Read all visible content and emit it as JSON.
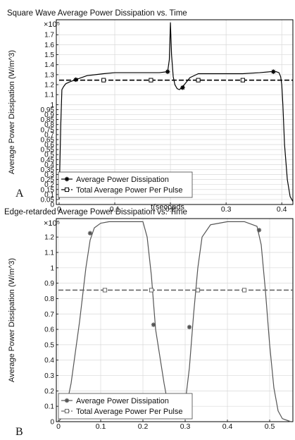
{
  "chart_data": [
    {
      "type": "line",
      "panel_label": "A",
      "title": "Square Wave Average Power Dissipation vs. Time",
      "xlabel": "t(seconds",
      "ylabel": "Average Power Dissipation (W/m^3)",
      "y_multiplier_label": "×10⁵",
      "xlim": [
        -0.005,
        0.42
      ],
      "ylim": [
        0,
        1.85
      ],
      "xticks": [
        0,
        0.1,
        0.2,
        0.3,
        0.4
      ],
      "xtick_labels": [
        "0",
        "0.1",
        "0.2",
        "0.3",
        "0.4"
      ],
      "yticks": [
        0,
        0.05,
        0.1,
        0.15,
        0.2,
        0.25,
        0.3,
        0.35,
        0.4,
        0.45,
        0.5,
        0.55,
        0.6,
        0.65,
        0.7,
        0.75,
        0.8,
        0.85,
        0.9,
        0.95,
        1,
        1.1,
        1.2,
        1.3,
        1.4,
        1.5,
        1.6,
        1.7
      ],
      "ytick_labels": [
        "0",
        "0.05",
        "0.1",
        "0.15",
        "0.2",
        "0.25",
        "0.3",
        "0.35",
        "0.4",
        "0.45",
        "0.5",
        "0.55",
        "0.6",
        "0.65",
        "0.7",
        "0.75",
        "0.8",
        "0.85",
        "0.9",
        "0.95",
        "1",
        "1.1",
        "1.2",
        "1.3",
        "1.4",
        "1.5",
        "1.6",
        "1.7"
      ],
      "grid": true,
      "legend_position": "bottom-left",
      "series": [
        {
          "name": "Average Power Dissipation",
          "style": "solid",
          "color": "#000000",
          "marker": "star",
          "x": [
            0.0,
            0.003,
            0.005,
            0.008,
            0.012,
            0.02,
            0.03,
            0.05,
            0.08,
            0.1,
            0.12,
            0.15,
            0.18,
            0.195,
            0.198,
            0.2,
            0.202,
            0.205,
            0.208,
            0.212,
            0.216,
            0.22,
            0.225,
            0.235,
            0.25,
            0.28,
            0.3,
            0.33,
            0.36,
            0.38,
            0.39,
            0.395,
            0.398,
            0.4,
            0.402,
            0.405,
            0.41,
            0.415,
            0.42
          ],
          "y": [
            0.05,
            0.8,
            1.15,
            1.18,
            1.21,
            1.23,
            1.25,
            1.29,
            1.31,
            1.32,
            1.32,
            1.32,
            1.32,
            1.33,
            1.45,
            1.82,
            1.5,
            1.28,
            1.2,
            1.16,
            1.15,
            1.17,
            1.2,
            1.27,
            1.31,
            1.31,
            1.31,
            1.31,
            1.32,
            1.33,
            1.33,
            1.32,
            1.28,
            1.2,
            1.0,
            0.6,
            0.25,
            0.08,
            0.03
          ],
          "marker_x": [
            0.03,
            0.195,
            0.222,
            0.385
          ],
          "marker_y": [
            1.25,
            1.33,
            1.17,
            1.33
          ]
        },
        {
          "name": "Total Average Power Per Pulse",
          "style": "dashed",
          "color": "#000000",
          "marker": "square",
          "x": [
            0.0,
            0.42
          ],
          "y": [
            1.245,
            1.245
          ],
          "marker_x": [
            0.08,
            0.165,
            0.25,
            0.33
          ],
          "marker_y": [
            1.245,
            1.245,
            1.245,
            1.245
          ]
        }
      ]
    },
    {
      "type": "line",
      "panel_label": "B",
      "title": "Edge-retarded Average Power Dissipation vs. Time",
      "xlabel": "t(seconds)",
      "ylabel": "Average Power Dissipation (W/m^3)",
      "y_multiplier_label": "×10⁵",
      "xlim": [
        -0.005,
        0.555
      ],
      "ylim": [
        0,
        1.32
      ],
      "xticks": [
        0,
        0.1,
        0.2,
        0.3,
        0.4,
        0.5
      ],
      "xtick_labels": [
        "0",
        "0.1",
        "0.2",
        "0.3",
        "0.4",
        "0.5"
      ],
      "yticks": [
        0,
        0.1,
        0.2,
        0.3,
        0.4,
        0.5,
        0.6,
        0.7,
        0.8,
        0.9,
        1,
        1.1,
        1.2
      ],
      "ytick_labels": [
        "0",
        "0.1",
        "0.2",
        "0.3",
        "0.4",
        "0.5",
        "0.6",
        "0.7",
        "0.8",
        "0.9",
        "1",
        "1.1",
        "1.2"
      ],
      "grid": true,
      "legend_position": "bottom-left",
      "series": [
        {
          "name": "Average Power Dissipation",
          "style": "solid",
          "color": "#555555",
          "marker": "star",
          "x": [
            0.0,
            0.015,
            0.03,
            0.05,
            0.065,
            0.075,
            0.085,
            0.1,
            0.12,
            0.16,
            0.2,
            0.21,
            0.22,
            0.23,
            0.25,
            0.26,
            0.27,
            0.28,
            0.29,
            0.3,
            0.31,
            0.32,
            0.33,
            0.34,
            0.36,
            0.4,
            0.44,
            0.47,
            0.48,
            0.49,
            0.5,
            0.51,
            0.52,
            0.53,
            0.55
          ],
          "y": [
            0.0,
            0.05,
            0.25,
            0.65,
            1.0,
            1.18,
            1.26,
            1.29,
            1.3,
            1.3,
            1.3,
            1.2,
            0.95,
            0.6,
            0.25,
            0.1,
            0.03,
            0.02,
            0.03,
            0.12,
            0.35,
            0.7,
            1.0,
            1.2,
            1.28,
            1.3,
            1.3,
            1.27,
            1.15,
            0.85,
            0.5,
            0.22,
            0.07,
            0.02,
            0.0
          ],
          "marker_x": [
            0.075,
            0.225,
            0.31,
            0.475
          ],
          "marker_y": [
            1.225,
            0.63,
            0.615,
            1.245
          ]
        },
        {
          "name": "Total Average Power Per Pulse",
          "style": "dashed",
          "color": "#666666",
          "marker": "square",
          "x": [
            0.0,
            0.555
          ],
          "y": [
            0.855,
            0.855
          ],
          "marker_x": [
            0.11,
            0.22,
            0.33,
            0.44
          ],
          "marker_y": [
            0.855,
            0.855,
            0.855,
            0.855
          ]
        }
      ]
    }
  ]
}
